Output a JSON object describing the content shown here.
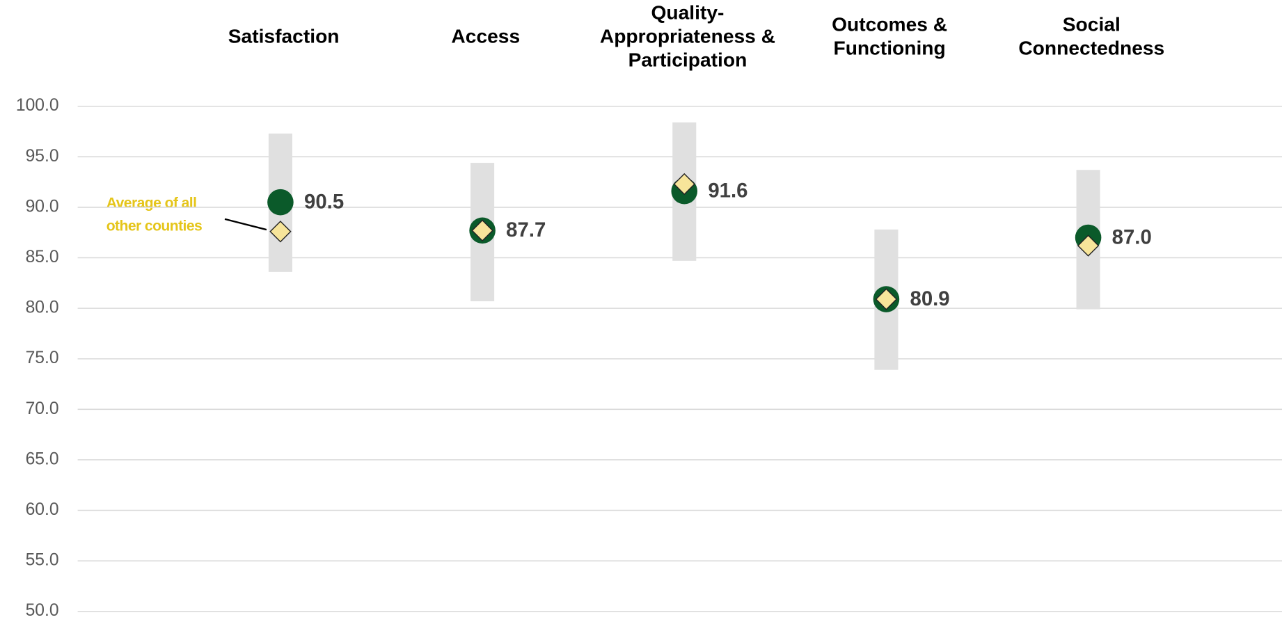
{
  "chart_data": {
    "type": "range",
    "categories": [
      [
        "Satisfaction"
      ],
      [
        "Access"
      ],
      [
        "Quality-",
        "Appropriateness &",
        "Participation"
      ],
      [
        "Outcomes &",
        "Functioning"
      ],
      [
        "Social",
        "Connectedness"
      ]
    ],
    "range_low": [
      83.6,
      80.7,
      84.7,
      73.9,
      79.9
    ],
    "range_high": [
      97.3,
      94.4,
      98.4,
      87.8,
      93.7
    ],
    "range_color": "#e0e0e0",
    "values": [
      90.5,
      87.7,
      91.6,
      80.9,
      87.0
    ],
    "value_labels": [
      "90.5",
      "87.7",
      "91.6",
      "80.9",
      "87.0"
    ],
    "color": "#0b5a2a",
    "average": {
      "name": "Average of all other counties",
      "color": "#f7e59a",
      "values": [
        87.6,
        87.7,
        92.3,
        80.9,
        86.2
      ]
    },
    "annotation_color": "#e5c51a",
    "ylim": [
      50,
      100
    ],
    "yticks": [
      {
        "value": 50,
        "label": "50.0"
      },
      {
        "value": 55,
        "label": "55.0"
      },
      {
        "value": 60,
        "label": "60.0"
      },
      {
        "value": 65,
        "label": "65.0"
      },
      {
        "value": 70,
        "label": "70.0"
      },
      {
        "value": 75,
        "label": "75.0"
      },
      {
        "value": 80,
        "label": "80.0"
      },
      {
        "value": 85,
        "label": "85.0"
      },
      {
        "value": 90,
        "label": "90.0"
      },
      {
        "value": 95,
        "label": "95.0"
      },
      {
        "value": 100,
        "label": "100.0"
      }
    ],
    "grid": true
  }
}
